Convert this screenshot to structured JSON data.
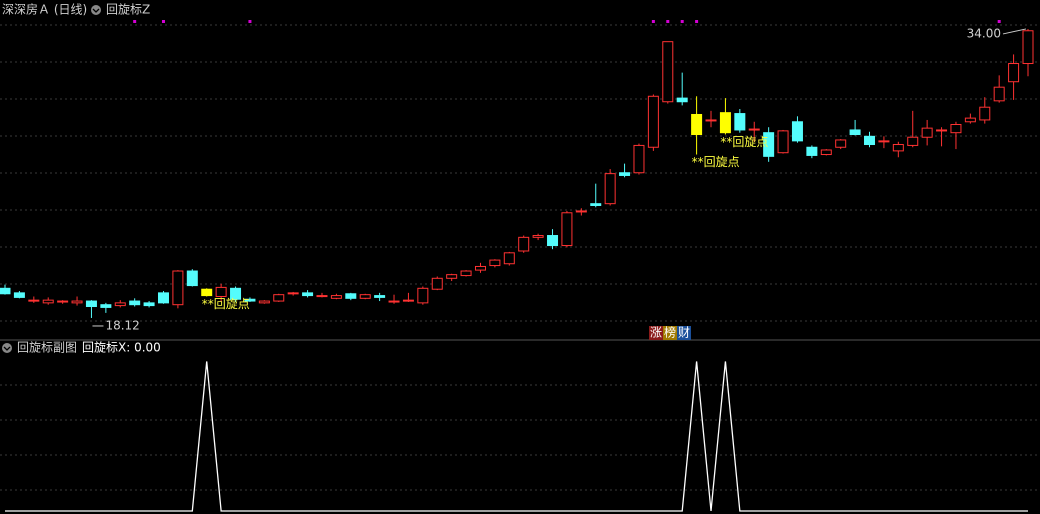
{
  "header": {
    "title": "深深房Ａ (日线)",
    "indicator": "回旋标Z"
  },
  "sub_header": {
    "title": "回旋标副图",
    "readout": "回旋标X: 0.00"
  },
  "badges": [
    "涨",
    "榜",
    "财"
  ],
  "chart_data": [
    {
      "type": "candlestick",
      "ylim": [
        16.91,
        35.59
      ],
      "grid": true,
      "up_color": "#ff3232",
      "down_color": "#54fcfc",
      "highlight_color": "#ffff00",
      "marker_color": "#d400d4",
      "open": [
        19.75,
        19.5,
        19.1,
        18.95,
        19.0,
        18.95,
        19.05,
        18.85,
        18.8,
        19.05,
        18.95,
        19.5,
        18.85,
        20.7,
        19.7,
        19.3,
        19.75,
        19.15,
        18.95,
        19.05,
        19.45,
        19.5,
        19.35,
        19.2,
        19.45,
        19.2,
        19.35,
        19.0,
        19.1,
        18.95,
        19.7,
        20.3,
        20.45,
        20.75,
        21.0,
        21.1,
        21.8,
        22.55,
        22.65,
        22.1,
        24.0,
        24.4,
        24.4,
        26.1,
        26.1,
        27.5,
        30.0,
        30.2,
        29.3,
        29.0,
        29.4,
        29.35,
        28.45,
        28.3,
        27.2,
        28.9,
        27.5,
        27.1,
        27.5,
        28.45,
        28.1,
        27.85,
        27.3,
        27.6,
        28.05,
        28.4,
        28.3,
        28.9,
        29.0,
        30.05,
        31.1,
        32.1
      ],
      "high": [
        19.95,
        19.6,
        19.3,
        19.25,
        19.1,
        19.3,
        19.1,
        18.95,
        19.1,
        19.2,
        19.05,
        19.6,
        20.75,
        20.8,
        19.75,
        20.0,
        19.85,
        19.25,
        19.1,
        19.45,
        19.55,
        19.65,
        19.5,
        19.45,
        19.5,
        19.45,
        19.5,
        19.4,
        19.5,
        19.85,
        20.4,
        20.55,
        20.75,
        21.15,
        21.35,
        21.75,
        22.65,
        22.75,
        23.0,
        24.0,
        24.15,
        25.5,
        26.3,
        26.6,
        27.7,
        30.4,
        33.3,
        31.6,
        30.3,
        29.5,
        30.2,
        29.6,
        28.9,
        28.6,
        28.45,
        29.2,
        27.6,
        27.4,
        27.95,
        29.0,
        28.35,
        28.1,
        27.8,
        29.5,
        29.0,
        28.6,
        28.9,
        29.35,
        30.25,
        31.45,
        32.6,
        34.0
      ],
      "low": [
        19.4,
        19.2,
        18.95,
        18.85,
        18.9,
        18.8,
        18.12,
        18.4,
        18.7,
        18.75,
        18.7,
        18.9,
        18.65,
        19.85,
        19.3,
        19.0,
        19.0,
        19.0,
        18.9,
        19.0,
        19.35,
        19.25,
        19.25,
        19.15,
        19.1,
        19.15,
        19.05,
        18.9,
        19.0,
        18.85,
        19.65,
        20.15,
        20.4,
        20.6,
        20.9,
        21.0,
        21.7,
        22.4,
        21.9,
        22.0,
        23.75,
        24.2,
        24.3,
        25.85,
        26.0,
        27.3,
        29.9,
        29.8,
        27.1,
        28.6,
        28.2,
        28.3,
        27.8,
        26.7,
        27.15,
        27.75,
        26.9,
        27.05,
        27.4,
        28.15,
        27.5,
        27.45,
        26.95,
        27.5,
        27.6,
        27.55,
        27.4,
        28.8,
        28.8,
        29.95,
        30.1,
        31.4
      ],
      "close": [
        19.45,
        19.25,
        19.1,
        19.1,
        19.05,
        19.05,
        18.75,
        18.7,
        18.95,
        18.85,
        18.8,
        18.95,
        20.7,
        19.9,
        19.35,
        19.8,
        19.15,
        19.05,
        19.05,
        19.4,
        19.5,
        19.35,
        19.35,
        19.35,
        19.2,
        19.4,
        19.25,
        19.05,
        19.1,
        19.75,
        20.3,
        20.5,
        20.7,
        20.95,
        21.3,
        21.7,
        22.55,
        22.65,
        22.1,
        23.9,
        24.0,
        24.3,
        26.05,
        25.95,
        27.6,
        30.3,
        33.3,
        30.0,
        28.2,
        29.0,
        28.3,
        28.45,
        28.5,
        27.0,
        28.4,
        27.85,
        27.05,
        27.35,
        27.9,
        28.2,
        27.65,
        27.85,
        27.65,
        28.05,
        28.55,
        28.45,
        28.75,
        29.1,
        29.7,
        30.8,
        32.1,
        33.9
      ],
      "highlight": [
        14,
        48,
        50
      ],
      "markers": [
        9,
        11,
        17,
        45,
        46,
        47,
        48,
        69
      ],
      "max_label": "34.00",
      "min_label": "18.12",
      "annotations": [
        {
          "text": "**回旋点",
          "index": 14
        },
        {
          "text": "**回旋点",
          "index": 48
        },
        {
          "text": "**回旋点",
          "index": 50
        }
      ]
    },
    {
      "type": "line",
      "ylim": [
        0,
        1.03
      ],
      "grid": true,
      "color": "#ffffff",
      "values": [
        0,
        0,
        0,
        0,
        0,
        0,
        0,
        0,
        0,
        0,
        0,
        0,
        0,
        0,
        1,
        0,
        0,
        0,
        0,
        0,
        0,
        0,
        0,
        0,
        0,
        0,
        0,
        0,
        0,
        0,
        0,
        0,
        0,
        0,
        0,
        0,
        0,
        0,
        0,
        0,
        0,
        0,
        0,
        0,
        0,
        0,
        0,
        0,
        1,
        0,
        1,
        0,
        0,
        0,
        0,
        0,
        0,
        0,
        0,
        0,
        0,
        0,
        0,
        0,
        0,
        0,
        0,
        0,
        0,
        0,
        0,
        0
      ]
    }
  ]
}
